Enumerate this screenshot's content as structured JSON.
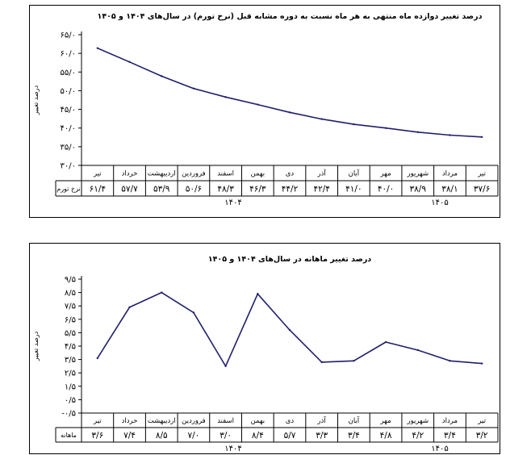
{
  "charts": [
    {
      "title": "درصد تغییر دوازده ماه منتهی به هر ماه نسبت به دوره مشابه قبل (نرخ تورم) در سال‌های ۱۴۰۴ و ۱۴۰۵",
      "ylabel": "درصد تغییر",
      "row_label": "نرخ تورم",
      "yticks": [
        "۳۰/۰",
        "۳۵/۰",
        "۴۰/۰",
        "۴۵/۰",
        "۵۰/۰",
        "۵۵/۰",
        "۶۰/۰",
        "۶۵/۰"
      ],
      "months": [
        "تیر",
        "مرداد",
        "شهریور",
        "مهر",
        "آبان",
        "آذر",
        "دی",
        "بهمن",
        "اسفند",
        "فروردین",
        "اردیبهشت",
        "خرداد",
        "تیر"
      ],
      "value_labels": [
        "۳۷/۶",
        "۳۸/۱",
        "۳۸/۹",
        "۴۰/۰",
        "۴۱/۰",
        "۴۲/۴",
        "۴۴/۲",
        "۴۶/۳",
        "۴۸/۳",
        "۵۰/۶",
        "۵۳/۹",
        "۵۷/۷",
        "۶۱/۴"
      ],
      "years": [
        "۱۴۰۴",
        "۱۴۰۵"
      ]
    },
    {
      "title": "درصد تغییر ماهانه در سال‌های ۱۴۰۴ و ۱۴۰۵",
      "ylabel": "درصد تغییر",
      "row_label": "ماهانه",
      "yticks": [
        "-۰/۵",
        "۰/۵",
        "۱/۵",
        "۲/۵",
        "۳/۵",
        "۴/۵",
        "۵/۵",
        "۶/۵",
        "۷/۵",
        "۸/۵",
        "۹/۵"
      ],
      "months": [
        "تیر",
        "مرداد",
        "شهریور",
        "مهر",
        "آبان",
        "آذر",
        "دی",
        "بهمن",
        "اسفند",
        "فروردین",
        "اردیبهشت",
        "خرداد",
        "تیر"
      ],
      "value_labels": [
        "۳/۲",
        "۳/۴",
        "۴/۲",
        "۴/۸",
        "۳/۴",
        "۳/۳",
        "۵/۷",
        "۸/۴",
        "۳/۰",
        "۷/۰",
        "۸/۵",
        "۷/۴",
        "۳/۶"
      ],
      "years": [
        "۱۴۰۴",
        "۱۴۰۵"
      ]
    }
  ],
  "chart_data": [
    {
      "type": "line",
      "title": "درصد تغییر دوازده ماه منتهی به هر ماه نسبت به دوره مشابه قبل (نرخ تورم) در سال‌های ۱۴۰۴ و ۱۴۰۵",
      "ylabel": "درصد تغییر",
      "categories": [
        "تیر",
        "مرداد",
        "شهریور",
        "مهر",
        "آبان",
        "آذر",
        "دی",
        "بهمن",
        "اسفند",
        "فروردین",
        "اردیبهشت",
        "خرداد",
        "تیر"
      ],
      "series": [
        {
          "name": "نرخ تورم",
          "values": [
            37.6,
            38.1,
            38.9,
            40.0,
            41.0,
            42.4,
            44.2,
            46.3,
            48.3,
            50.6,
            53.9,
            57.7,
            61.4
          ]
        }
      ],
      "ylim": [
        30,
        65
      ],
      "order": "right-to-left",
      "color": "#1f1f6b",
      "grid": false
    },
    {
      "type": "line",
      "title": "درصد تغییر ماهانه در سال‌های ۱۴۰۴ و ۱۴۰۵",
      "ylabel": "درصد تغییر",
      "categories": [
        "تیر",
        "مرداد",
        "شهریور",
        "مهر",
        "آبان",
        "آذر",
        "دی",
        "بهمن",
        "اسفند",
        "فروردین",
        "اردیبهشت",
        "خرداد",
        "تیر"
      ],
      "series": [
        {
          "name": "ماهانه",
          "values": [
            3.2,
            3.4,
            4.2,
            4.8,
            3.4,
            3.3,
            5.7,
            8.4,
            3.0,
            7.0,
            8.5,
            7.4,
            3.6
          ]
        }
      ],
      "ylim": [
        -0.5,
        9.5
      ],
      "order": "right-to-left",
      "color": "#1f1f6b",
      "grid": false
    }
  ]
}
